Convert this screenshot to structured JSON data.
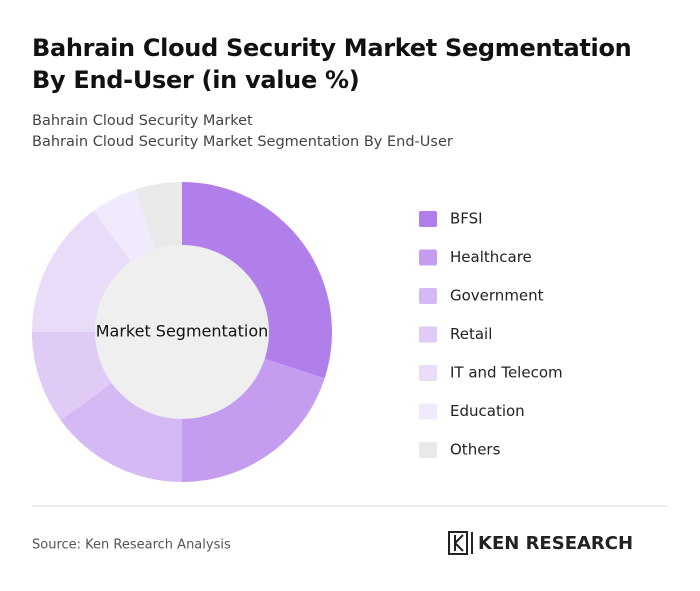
{
  "chart_data": {
    "type": "donut",
    "title": "Bahrain Cloud Security Market Segmentation By End-User (in value %)",
    "subtitle": [
      "Bahrain Cloud Security Market",
      "Bahrain Cloud Security Market Segmentation By End-User"
    ],
    "center_label": "Market Segmentation",
    "categories": [
      "BFSI",
      "Healthcare",
      "Government",
      "Retail",
      "IT and Telecom",
      "Education",
      "Others"
    ],
    "values": [
      30,
      20,
      15,
      10,
      15,
      5,
      5
    ],
    "colors": [
      "#b07fe9",
      "#c59df0",
      "#d5b9f4",
      "#e0cbf7",
      "#e9dcf9",
      "#f1eafc",
      "#e9e9e9"
    ],
    "legend": "right"
  },
  "source": "Source: Ken Research Analysis",
  "logo": "KEN RESEARCH"
}
